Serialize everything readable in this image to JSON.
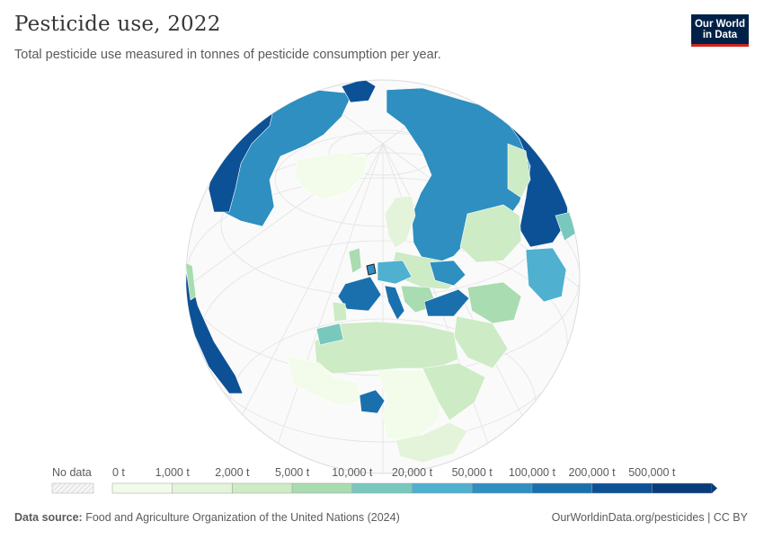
{
  "header": {
    "title": "Pesticide use, 2022",
    "subtitle": "Total pesticide use measured in tonnes of pesticide consumption per year.",
    "logo_line1": "Our World",
    "logo_line2": "in Data"
  },
  "legend": {
    "no_data_label": "No data",
    "bins": [
      {
        "label": "0 t",
        "color": "#f3fbea"
      },
      {
        "label": "1,000 t",
        "color": "#e3f4da"
      },
      {
        "label": "2,000 t",
        "color": "#cdebc5"
      },
      {
        "label": "5,000 t",
        "color": "#a9dcb1"
      },
      {
        "label": "10,000 t",
        "color": "#79c8be"
      },
      {
        "label": "20,000 t",
        "color": "#4fb0d0"
      },
      {
        "label": "50,000 t",
        "color": "#2e8fc0"
      },
      {
        "label": "100,000 t",
        "color": "#1a70ad"
      },
      {
        "label": "200,000 t",
        "color": "#0c5196"
      },
      {
        "label": "500,000 t",
        "color": "#083c7a"
      }
    ]
  },
  "map": {
    "projection": "orthographic",
    "view_center": "Europe / Africa from the north",
    "regions": [
      {
        "name": "Canada",
        "bin": 8
      },
      {
        "name": "United States",
        "bin": 9
      },
      {
        "name": "Greenland",
        "bin": 0
      },
      {
        "name": "Russia",
        "bin": 8
      },
      {
        "name": "Kazakhstan",
        "bin": 3
      },
      {
        "name": "China",
        "bin": 9
      },
      {
        "name": "Mongolia",
        "bin": 2
      },
      {
        "name": "Japan",
        "bin": 6
      },
      {
        "name": "Ukraine",
        "bin": 7
      },
      {
        "name": "France",
        "bin": 7
      },
      {
        "name": "Spain",
        "bin": 6
      },
      {
        "name": "Italy",
        "bin": 6
      },
      {
        "name": "Turkey",
        "bin": 7
      },
      {
        "name": "Iran",
        "bin": 3
      },
      {
        "name": "Nigeria",
        "bin": 6
      },
      {
        "name": "Egypt",
        "bin": 2
      },
      {
        "name": "Algeria",
        "bin": 2
      },
      {
        "name": "Mexico",
        "bin": 4
      }
    ]
  },
  "footer": {
    "source_label": "Data source:",
    "source_text": "Food and Agriculture Organization of the United Nations (2024)",
    "url": "OurWorldinData.org/pesticides | CC BY"
  }
}
